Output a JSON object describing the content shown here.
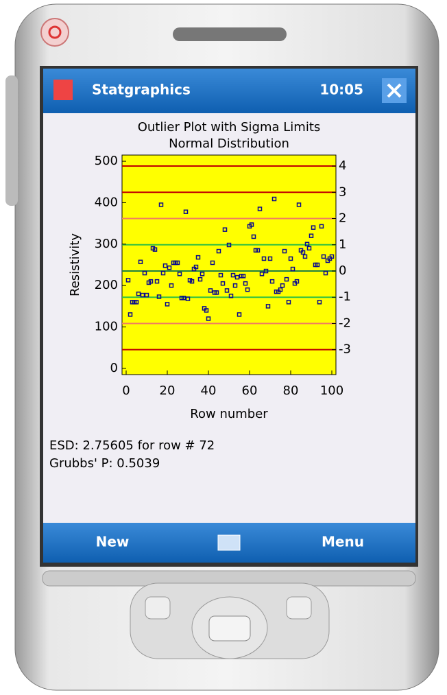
{
  "status_bar": {
    "app_title": "Statgraphics",
    "time": "10:05"
  },
  "chart_data": {
    "type": "scatter",
    "title": "Outlier Plot with Sigma Limits",
    "subtitle": "Normal Distribution",
    "x_label": "Row number",
    "y_label": "Resistivity",
    "x": [
      1,
      2,
      3,
      4,
      5,
      6,
      7,
      8,
      9,
      10,
      11,
      12,
      13,
      14,
      15,
      16,
      17,
      18,
      19,
      20,
      21,
      22,
      23,
      24,
      25,
      26,
      27,
      28,
      29,
      30,
      31,
      32,
      33,
      34,
      35,
      36,
      37,
      38,
      39,
      40,
      41,
      42,
      43,
      44,
      45,
      46,
      47,
      48,
      49,
      50,
      51,
      52,
      53,
      54,
      55,
      56,
      57,
      58,
      59,
      60,
      61,
      62,
      63,
      64,
      65,
      66,
      67,
      68,
      69,
      70,
      71,
      72,
      73,
      74,
      75,
      76,
      77,
      78,
      79,
      80,
      81,
      82,
      83,
      84,
      85,
      86,
      87,
      88,
      89,
      90,
      91,
      92,
      93,
      94,
      95,
      96,
      97,
      98,
      99,
      100
    ],
    "values": [
      213,
      130,
      160,
      160,
      160,
      180,
      257,
      177,
      230,
      177,
      207,
      210,
      290,
      287,
      210,
      173,
      395,
      230,
      248,
      155,
      243,
      200,
      255,
      255,
      255,
      228,
      170,
      170,
      378,
      168,
      213,
      210,
      240,
      245,
      268,
      215,
      228,
      145,
      140,
      120,
      188,
      255,
      183,
      183,
      283,
      225,
      205,
      335,
      188,
      298,
      175,
      225,
      200,
      220,
      130,
      223,
      223,
      205,
      190,
      343,
      347,
      318,
      285,
      285,
      385,
      228,
      265,
      235,
      150,
      265,
      210,
      409,
      185,
      185,
      190,
      200,
      283,
      215,
      160,
      265,
      240,
      205,
      210,
      395,
      285,
      280,
      270,
      300,
      290,
      320,
      340,
      250,
      250,
      160,
      343,
      270,
      230,
      260,
      265,
      270
    ],
    "color": "#0a0a8c",
    "background": "#ffff00",
    "xlim": [
      -2,
      102
    ],
    "xticks": [
      0,
      20,
      40,
      60,
      80,
      100
    ],
    "ylim": [
      -15,
      515
    ],
    "yticks": [
      0,
      100,
      200,
      300,
      400,
      500
    ],
    "y2lim": [
      -3.95,
      4.42
    ],
    "y2ticks": [
      -3,
      -2,
      -1,
      0,
      1,
      2,
      3,
      4
    ],
    "limit_lines": [
      {
        "value": -3,
        "color": "#c00000"
      },
      {
        "value": -2,
        "color": "#f08060"
      },
      {
        "value": -1,
        "color": "#30c040"
      },
      {
        "value": 0,
        "color": "#208040"
      },
      {
        "value": 1,
        "color": "#30c040"
      },
      {
        "value": 2,
        "color": "#f08060"
      },
      {
        "value": 3,
        "color": "#c00000"
      },
      {
        "value": 4,
        "color": "#c00000"
      }
    ]
  },
  "results": [
    "ESD: 2.75605 for row # 72",
    "Grubbs' P: 0.5039"
  ],
  "softkeys": {
    "left": "New",
    "right": "Menu"
  }
}
